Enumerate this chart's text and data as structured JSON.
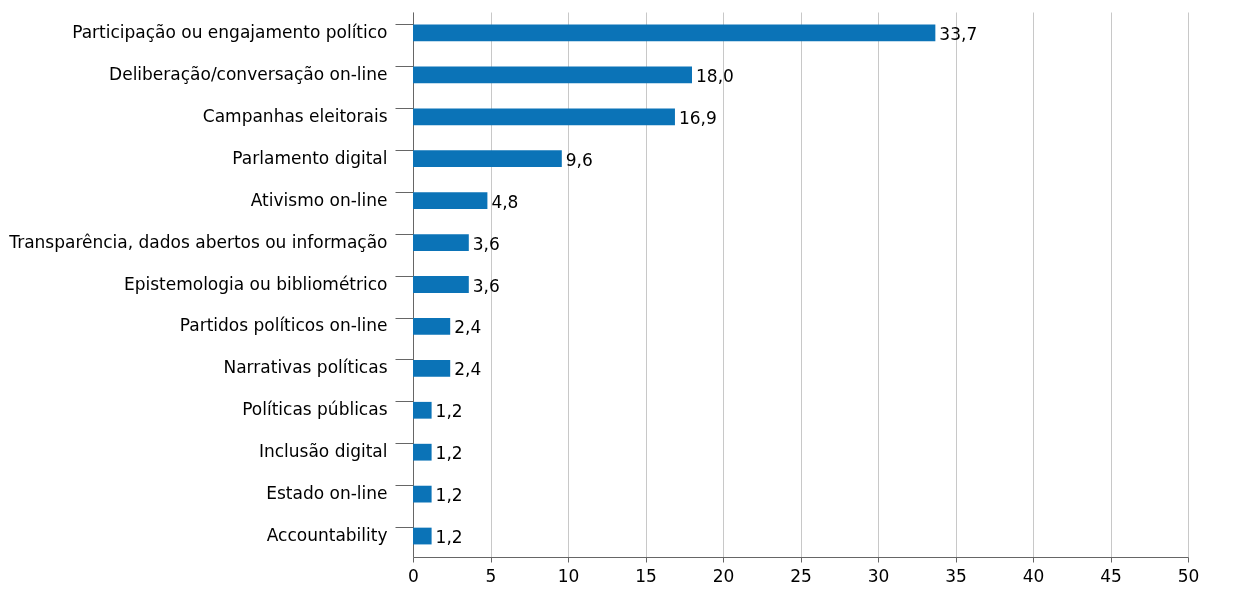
{
  "chart_data": {
    "type": "bar",
    "orientation": "horizontal",
    "categories": [
      "Participação ou engajamento político",
      "Deliberação/conversação on-line",
      "Campanhas eleitorais",
      "Parlamento digital",
      "Ativismo on-line",
      "Transparência, dados abertos ou informação",
      "Epistemologia ou bibliométrico",
      "Partidos políticos on-line",
      "Narrativas políticas",
      "Políticas públicas",
      "Inclusão digital",
      "Estado on-line",
      "Accountability"
    ],
    "values": [
      33.7,
      18.0,
      16.9,
      9.6,
      4.8,
      3.6,
      3.6,
      2.4,
      2.4,
      1.2,
      1.2,
      1.2,
      1.2
    ],
    "value_labels": [
      "33,7",
      "18,0",
      "16,9",
      "9,6",
      "4,8",
      "3,6",
      "3,6",
      "2,4",
      "2,4",
      "1,2",
      "1,2",
      "1,2",
      "1,2"
    ],
    "color": "#0b73b7",
    "xlim": [
      0,
      50
    ],
    "xticks": [
      0,
      5,
      10,
      15,
      20,
      25,
      30,
      35,
      40,
      45,
      50
    ],
    "grid": "x"
  }
}
